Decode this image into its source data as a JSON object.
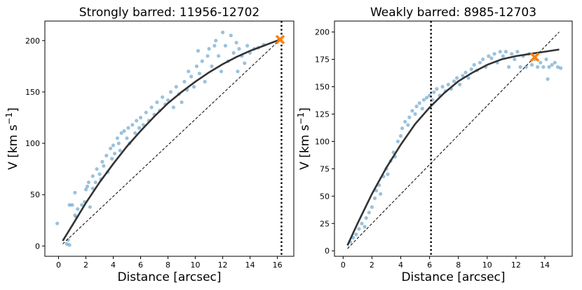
{
  "chart_data": [
    {
      "type": "scatter",
      "title": "Strongly barred: 11956-12702",
      "xlabel": "Distance [arcsec]",
      "ylabel": "V [km s",
      "ylabel_exp": "−1",
      "ylabel_close": "]",
      "xlim": [
        -1.0,
        17.2
      ],
      "ylim": [
        -10,
        219
      ],
      "xticks": [
        0,
        2,
        4,
        6,
        8,
        10,
        12,
        14,
        16
      ],
      "yticks": [
        0,
        50,
        100,
        150,
        200
      ],
      "colors": {
        "points": "#1f77b4",
        "fit": "#333333",
        "marker": "#ff7f0e"
      },
      "fit_curve": {
        "x": [
          0.3,
          1,
          2,
          3,
          4,
          5,
          6,
          7,
          8,
          9,
          10,
          11,
          12,
          13,
          14,
          15,
          16.2
        ],
        "y": [
          5,
          20,
          42,
          62,
          80,
          97,
          112,
          126,
          139,
          150,
          160,
          169,
          177,
          184,
          190,
          195,
          201
        ]
      },
      "reference_line": {
        "x": [
          0.3,
          16.2
        ],
        "y": [
          2,
          201
        ]
      },
      "vertical_line_x": 16.3,
      "marker_point": {
        "x": 16.2,
        "y": 201
      },
      "points": [
        [
          -0.1,
          22
        ],
        [
          0.6,
          2
        ],
        [
          0.7,
          6
        ],
        [
          0.8,
          1
        ],
        [
          0.8,
          40
        ],
        [
          1.0,
          40
        ],
        [
          1.2,
          52
        ],
        [
          1.2,
          30
        ],
        [
          1.3,
          28
        ],
        [
          1.4,
          36
        ],
        [
          1.7,
          40
        ],
        [
          1.9,
          43
        ],
        [
          2.0,
          55
        ],
        [
          2.1,
          58
        ],
        [
          2.2,
          62
        ],
        [
          2.3,
          38
        ],
        [
          2.5,
          68
        ],
        [
          2.5,
          56
        ],
        [
          2.7,
          62
        ],
        [
          2.8,
          75
        ],
        [
          3.0,
          70
        ],
        [
          3.1,
          65
        ],
        [
          3.2,
          82
        ],
        [
          3.3,
          78
        ],
        [
          3.5,
          88
        ],
        [
          3.6,
          72
        ],
        [
          3.8,
          95
        ],
        [
          3.9,
          85
        ],
        [
          4.0,
          98
        ],
        [
          4.1,
          90
        ],
        [
          4.3,
          105
        ],
        [
          4.4,
          100
        ],
        [
          4.5,
          93
        ],
        [
          4.6,
          110
        ],
        [
          4.8,
          112
        ],
        [
          5.0,
          105
        ],
        [
          5.1,
          115
        ],
        [
          5.2,
          100
        ],
        [
          5.4,
          118
        ],
        [
          5.6,
          110
        ],
        [
          5.7,
          122
        ],
        [
          5.9,
          115
        ],
        [
          6.0,
          125
        ],
        [
          6.2,
          118
        ],
        [
          6.4,
          130
        ],
        [
          6.6,
          122
        ],
        [
          6.8,
          135
        ],
        [
          7.0,
          128
        ],
        [
          7.2,
          140
        ],
        [
          7.4,
          132
        ],
        [
          7.6,
          145
        ],
        [
          7.8,
          138
        ],
        [
          8.0,
          142
        ],
        [
          8.2,
          150
        ],
        [
          8.4,
          135
        ],
        [
          8.6,
          155
        ],
        [
          8.8,
          148
        ],
        [
          9.0,
          140
        ],
        [
          9.2,
          160
        ],
        [
          9.4,
          152
        ],
        [
          9.5,
          170
        ],
        [
          9.7,
          165
        ],
        [
          9.9,
          155
        ],
        [
          10.1,
          175
        ],
        [
          10.2,
          190
        ],
        [
          10.3,
          168
        ],
        [
          10.5,
          180
        ],
        [
          10.7,
          160
        ],
        [
          10.9,
          185
        ],
        [
          11.0,
          192
        ],
        [
          11.2,
          175
        ],
        [
          11.4,
          195
        ],
        [
          11.5,
          200
        ],
        [
          11.7,
          185
        ],
        [
          11.9,
          170
        ],
        [
          12.0,
          208
        ],
        [
          12.2,
          195
        ],
        [
          12.4,
          180
        ],
        [
          12.6,
          205
        ],
        [
          12.8,
          188
        ],
        [
          13.0,
          198
        ],
        [
          13.1,
          170
        ],
        [
          13.2,
          192
        ],
        [
          13.4,
          185
        ],
        [
          13.6,
          178
        ],
        [
          13.8,
          195
        ],
        [
          14.0,
          188
        ],
        [
          14.3,
          192
        ],
        [
          14.6,
          193
        ],
        [
          15.0,
          196
        ]
      ]
    },
    {
      "type": "scatter",
      "title": "Weakly barred: 8985-12703",
      "xlabel": "Distance [arcsec]",
      "ylabel": "V [km s",
      "ylabel_exp": "−1",
      "ylabel_close": "]",
      "xlim": [
        -0.6,
        15.9
      ],
      "ylim": [
        -5,
        210
      ],
      "xticks": [
        0,
        2,
        4,
        6,
        8,
        10,
        12,
        14
      ],
      "yticks": [
        0,
        25,
        50,
        75,
        100,
        125,
        150,
        175,
        200
      ],
      "colors": {
        "points": "#1f77b4",
        "fit": "#333333",
        "marker": "#ff7f0e"
      },
      "fit_curve": {
        "x": [
          0.3,
          1,
          2,
          3,
          4,
          5,
          6,
          7,
          8,
          9,
          10,
          11,
          12,
          13,
          14,
          15
        ],
        "y": [
          5,
          25,
          52,
          76,
          97,
          116,
          131,
          144,
          155,
          163,
          170,
          175,
          178,
          180,
          182,
          184
        ]
      },
      "reference_line": {
        "x": [
          0.3,
          15.0
        ],
        "y": [
          2,
          200
        ]
      },
      "vertical_line_x": 6.1,
      "marker_point": {
        "x": 13.3,
        "y": 177
      },
      "points": [
        [
          0.5,
          8
        ],
        [
          0.7,
          12
        ],
        [
          0.9,
          15
        ],
        [
          1.1,
          20
        ],
        [
          1.3,
          25
        ],
        [
          1.5,
          22
        ],
        [
          1.6,
          30
        ],
        [
          1.8,
          35
        ],
        [
          2.0,
          40
        ],
        [
          2.2,
          48
        ],
        [
          2.3,
          55
        ],
        [
          2.5,
          60
        ],
        [
          2.6,
          52
        ],
        [
          2.8,
          68
        ],
        [
          3.0,
          75
        ],
        [
          3.1,
          70
        ],
        [
          3.3,
          82
        ],
        [
          3.5,
          90
        ],
        [
          3.6,
          86
        ],
        [
          3.8,
          100
        ],
        [
          4.0,
          105
        ],
        [
          4.1,
          112
        ],
        [
          4.3,
          118
        ],
        [
          4.5,
          115
        ],
        [
          4.6,
          122
        ],
        [
          4.8,
          128
        ],
        [
          5.0,
          125
        ],
        [
          5.1,
          132
        ],
        [
          5.3,
          135
        ],
        [
          5.5,
          130
        ],
        [
          5.6,
          138
        ],
        [
          5.8,
          140
        ],
        [
          6.0,
          142
        ],
        [
          6.2,
          138
        ],
        [
          6.3,
          145
        ],
        [
          6.5,
          148
        ],
        [
          6.7,
          142
        ],
        [
          6.9,
          150
        ],
        [
          7.1,
          146
        ],
        [
          7.3,
          152
        ],
        [
          7.5,
          148
        ],
        [
          7.7,
          155
        ],
        [
          7.9,
          158
        ],
        [
          8.1,
          152
        ],
        [
          8.3,
          160
        ],
        [
          8.5,
          163
        ],
        [
          8.7,
          158
        ],
        [
          8.9,
          166
        ],
        [
          9.1,
          170
        ],
        [
          9.3,
          165
        ],
        [
          9.5,
          172
        ],
        [
          9.7,
          175
        ],
        [
          9.9,
          168
        ],
        [
          10.1,
          178
        ],
        [
          10.3,
          176
        ],
        [
          10.5,
          180
        ],
        [
          10.7,
          172
        ],
        [
          10.9,
          182
        ],
        [
          11.1,
          178
        ],
        [
          11.3,
          182
        ],
        [
          11.5,
          168
        ],
        [
          11.7,
          180
        ],
        [
          11.9,
          175
        ],
        [
          12.1,
          182
        ],
        [
          12.3,
          168
        ],
        [
          12.5,
          178
        ],
        [
          12.7,
          168
        ],
        [
          12.9,
          180
        ],
        [
          13.1,
          170
        ],
        [
          13.3,
          175
        ],
        [
          13.5,
          168
        ],
        [
          13.7,
          172
        ],
        [
          13.9,
          168
        ],
        [
          14.1,
          175
        ],
        [
          14.3,
          168
        ],
        [
          14.5,
          170
        ],
        [
          14.7,
          172
        ],
        [
          14.9,
          168
        ],
        [
          15.1,
          167
        ],
        [
          14.2,
          157
        ]
      ]
    }
  ]
}
